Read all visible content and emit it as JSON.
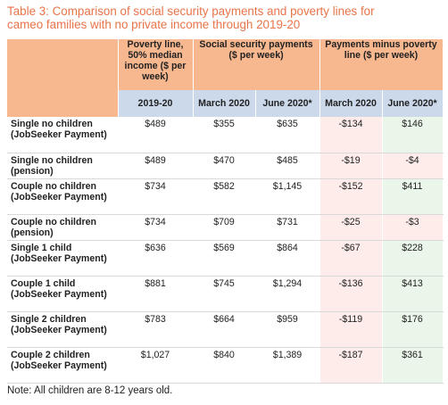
{
  "title_line1": "Table 3: Comparison of social security payments and poverty lines for",
  "title_line2": "cameo families with no private income through 2019-20",
  "header": {
    "poverty": "Poverty line, 50% median income ($ per week)",
    "social": "Social security payments ($ per week)",
    "minus": "Payments minus poverty line ($ per week)"
  },
  "subheader": {
    "poverty_year": "2019-20",
    "ss_march": "March 2020",
    "ss_june": "June 2020*",
    "pm_march": "March 2020",
    "pm_june": "June 2020*"
  },
  "rows": [
    {
      "label": "Single no children (JobSeeker Payment)",
      "poverty": "$489",
      "march": "$355",
      "june": "$635",
      "diff_march": "-$134",
      "diff_june": "$146"
    },
    {
      "label": "Single no children (pension)",
      "poverty": "$489",
      "march": "$470",
      "june": "$485",
      "diff_march": "-$19",
      "diff_june": "-$4"
    },
    {
      "label": "Couple no children (JobSeeker Payment)",
      "poverty": "$734",
      "march": "$582",
      "june": "$1,145",
      "diff_march": "-$152",
      "diff_june": "$411"
    },
    {
      "label": "Couple no children (pension)",
      "poverty": "$734",
      "march": "$709",
      "june": "$731",
      "diff_march": "-$25",
      "diff_june": "-$3"
    },
    {
      "label": "Single 1 child (JobSeeker Payment)",
      "poverty": "$636",
      "march": "$569",
      "june": "$864",
      "diff_march": "-$67",
      "diff_june": "$228"
    },
    {
      "label": "Couple 1 child (JobSeeker Payment)",
      "poverty": "$881",
      "march": "$745",
      "june": "$1,294",
      "diff_march": "-$136",
      "diff_june": "$413"
    },
    {
      "label": "Single 2 children (JobSeeker Payment)",
      "poverty": "$783",
      "march": "$664",
      "june": "$959",
      "diff_march": "-$119",
      "diff_june": "$176"
    },
    {
      "label": "Couple 2 children (JobSeeker Payment)",
      "poverty": "$1,027",
      "march": "$840",
      "june": "$1,389",
      "diff_march": "-$187",
      "diff_june": "$361"
    }
  ],
  "note": "Note: All children are 8-12 years old.",
  "colors": {
    "title": "#e8744a",
    "header_bg": "#f7b78f",
    "subheader_bg": "#ccd9ea",
    "negative_bg": "#fdecea",
    "positive_bg": "#eaf6ea"
  }
}
